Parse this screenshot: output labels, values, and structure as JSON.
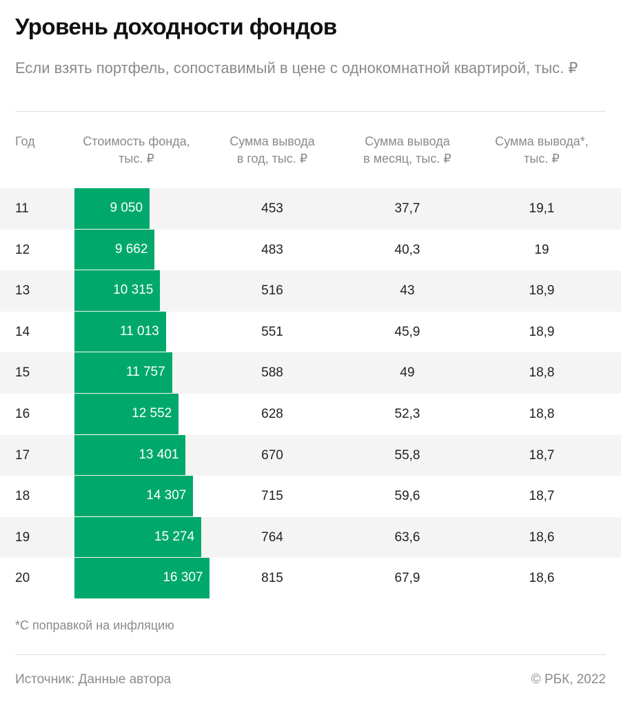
{
  "title": "Уровень доходности фондов",
  "subtitle": "Если взять портфель, сопоставимый в цене с однокомнатной квартирой, тыс. ₽",
  "note": "*С поправкой на инфляцию",
  "source": "Источник: Данные автора",
  "copyright": "© РБК, 2022",
  "colors": {
    "bar": "#00a96b",
    "alt_row": "#f4f4f4"
  },
  "chart_data": {
    "type": "table",
    "columns": [
      "Год",
      "Стоимость фонда, тыс. ₽",
      "Сумма вывода в год, тыс. ₽",
      "Сумма вывода в месяц, тыс. ₽",
      "Сумма вывода*, тыс. ₽"
    ],
    "header_lines": [
      [
        "Год",
        ""
      ],
      [
        "Стоимость фонда,",
        "тыс. ₽"
      ],
      [
        "Сумма вывода",
        "в год, тыс. ₽"
      ],
      [
        "Сумма вывода",
        "в месяц, тыс. ₽"
      ],
      [
        "Сумма вывода*,",
        "тыс. ₽"
      ]
    ],
    "bar_column": "Стоимость фонда, тыс. ₽",
    "rows": [
      {
        "year": "11",
        "fund": 9050,
        "fund_label": "9 050",
        "year_sum": "453",
        "month_sum": "37,7",
        "adj_sum": "19,1"
      },
      {
        "year": "12",
        "fund": 9662,
        "fund_label": "9 662",
        "year_sum": "483",
        "month_sum": "40,3",
        "adj_sum": "19"
      },
      {
        "year": "13",
        "fund": 10315,
        "fund_label": "10 315",
        "year_sum": "516",
        "month_sum": "43",
        "adj_sum": "18,9"
      },
      {
        "year": "14",
        "fund": 11013,
        "fund_label": "11 013",
        "year_sum": "551",
        "month_sum": "45,9",
        "adj_sum": "18,9"
      },
      {
        "year": "15",
        "fund": 11757,
        "fund_label": "11 757",
        "year_sum": "588",
        "month_sum": "49",
        "adj_sum": "18,8"
      },
      {
        "year": "16",
        "fund": 12552,
        "fund_label": "12 552",
        "year_sum": "628",
        "month_sum": "52,3",
        "adj_sum": "18,8"
      },
      {
        "year": "17",
        "fund": 13401,
        "fund_label": "13 401",
        "year_sum": "670",
        "month_sum": "55,8",
        "adj_sum": "18,7"
      },
      {
        "year": "18",
        "fund": 14307,
        "fund_label": "14 307",
        "year_sum": "715",
        "month_sum": "59,6",
        "adj_sum": "18,7"
      },
      {
        "year": "19",
        "fund": 15274,
        "fund_label": "15 274",
        "year_sum": "764",
        "month_sum": "63,6",
        "adj_sum": "18,6"
      },
      {
        "year": "20",
        "fund": 16307,
        "fund_label": "16 307",
        "year_sum": "815",
        "month_sum": "67,9",
        "adj_sum": "18,6"
      }
    ]
  }
}
